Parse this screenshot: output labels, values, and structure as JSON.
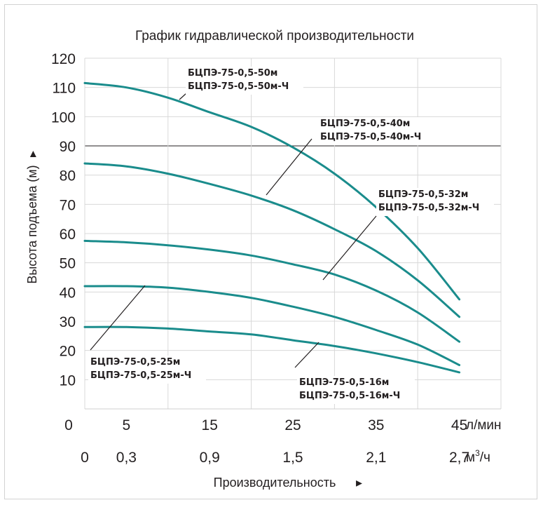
{
  "chart_data": {
    "type": "line",
    "title": "График гидравлической производительности",
    "ylabel": "Высота подъема (м)",
    "ylabel_arrow": "▸",
    "xlabel": "Производительность",
    "xlabel_arrow": "▸",
    "ylim": [
      0,
      120
    ],
    "y_ticks": [
      "10",
      "20",
      "30",
      "40",
      "50",
      "60",
      "70",
      "80",
      "90",
      "100",
      "110",
      "120"
    ],
    "x_ticks_lmin": [
      "0",
      "5",
      "15",
      "25",
      "35",
      "45"
    ],
    "x_ticks_lmin_values": [
      0,
      5,
      15,
      25,
      35,
      45
    ],
    "x_unit_lmin": "л/мин",
    "x_ticks_m3h": [
      "0",
      "0,3",
      "0,9",
      "1,5",
      "2,1",
      "2,7"
    ],
    "x_unit_m3h_base": "м",
    "x_unit_m3h_sup": "3",
    "x_unit_m3h_tail": "/ч",
    "x_range_lmin": [
      0,
      50
    ],
    "grid": true,
    "line_color": "#1a8c8c",
    "series": [
      {
        "label_1": "БЦПЭ-75-0,5-50м",
        "label_2": "БЦПЭ-75-0,5-50м-Ч",
        "x": [
          0,
          5,
          10,
          15,
          20,
          25,
          30,
          35,
          40,
          45
        ],
        "values": [
          111.5,
          110,
          106.5,
          101.5,
          96.5,
          89.5,
          80.5,
          69,
          55,
          37.5
        ]
      },
      {
        "label_1": "БЦПЭ-75-0,5-40м",
        "label_2": "БЦПЭ-75-0,5-40м-Ч",
        "x": [
          0,
          5,
          10,
          15,
          20,
          25,
          30,
          35,
          40,
          45
        ],
        "values": [
          84,
          83,
          80.5,
          77,
          73,
          68,
          61.5,
          54,
          44,
          31.5
        ]
      },
      {
        "label_1": "БЦПЭ-75-0,5-32м",
        "label_2": "БЦПЭ-75-0,5-32м-Ч",
        "x": [
          0,
          5,
          10,
          15,
          20,
          25,
          30,
          35,
          40,
          45
        ],
        "values": [
          57.5,
          57,
          56,
          54.5,
          52.5,
          49.5,
          46,
          40.5,
          33,
          23
        ]
      },
      {
        "label_1": "БЦПЭ-75-0,5-25м",
        "label_2": "БЦПЭ-75-0,5-25м-Ч",
        "x": [
          0,
          5,
          10,
          15,
          20,
          25,
          30,
          35,
          40,
          45
        ],
        "values": [
          42,
          42,
          41.5,
          40,
          38,
          35,
          31.5,
          27,
          22,
          15
        ]
      },
      {
        "label_1": "БЦПЭ-75-0,5-16м",
        "label_2": "БЦПЭ-75-0,5-16м-Ч",
        "x": [
          0,
          5,
          10,
          15,
          20,
          25,
          30,
          35,
          40,
          45
        ],
        "values": [
          28,
          28,
          27.5,
          26.5,
          25.5,
          23.5,
          21.5,
          19,
          16,
          12.5
        ]
      }
    ]
  }
}
